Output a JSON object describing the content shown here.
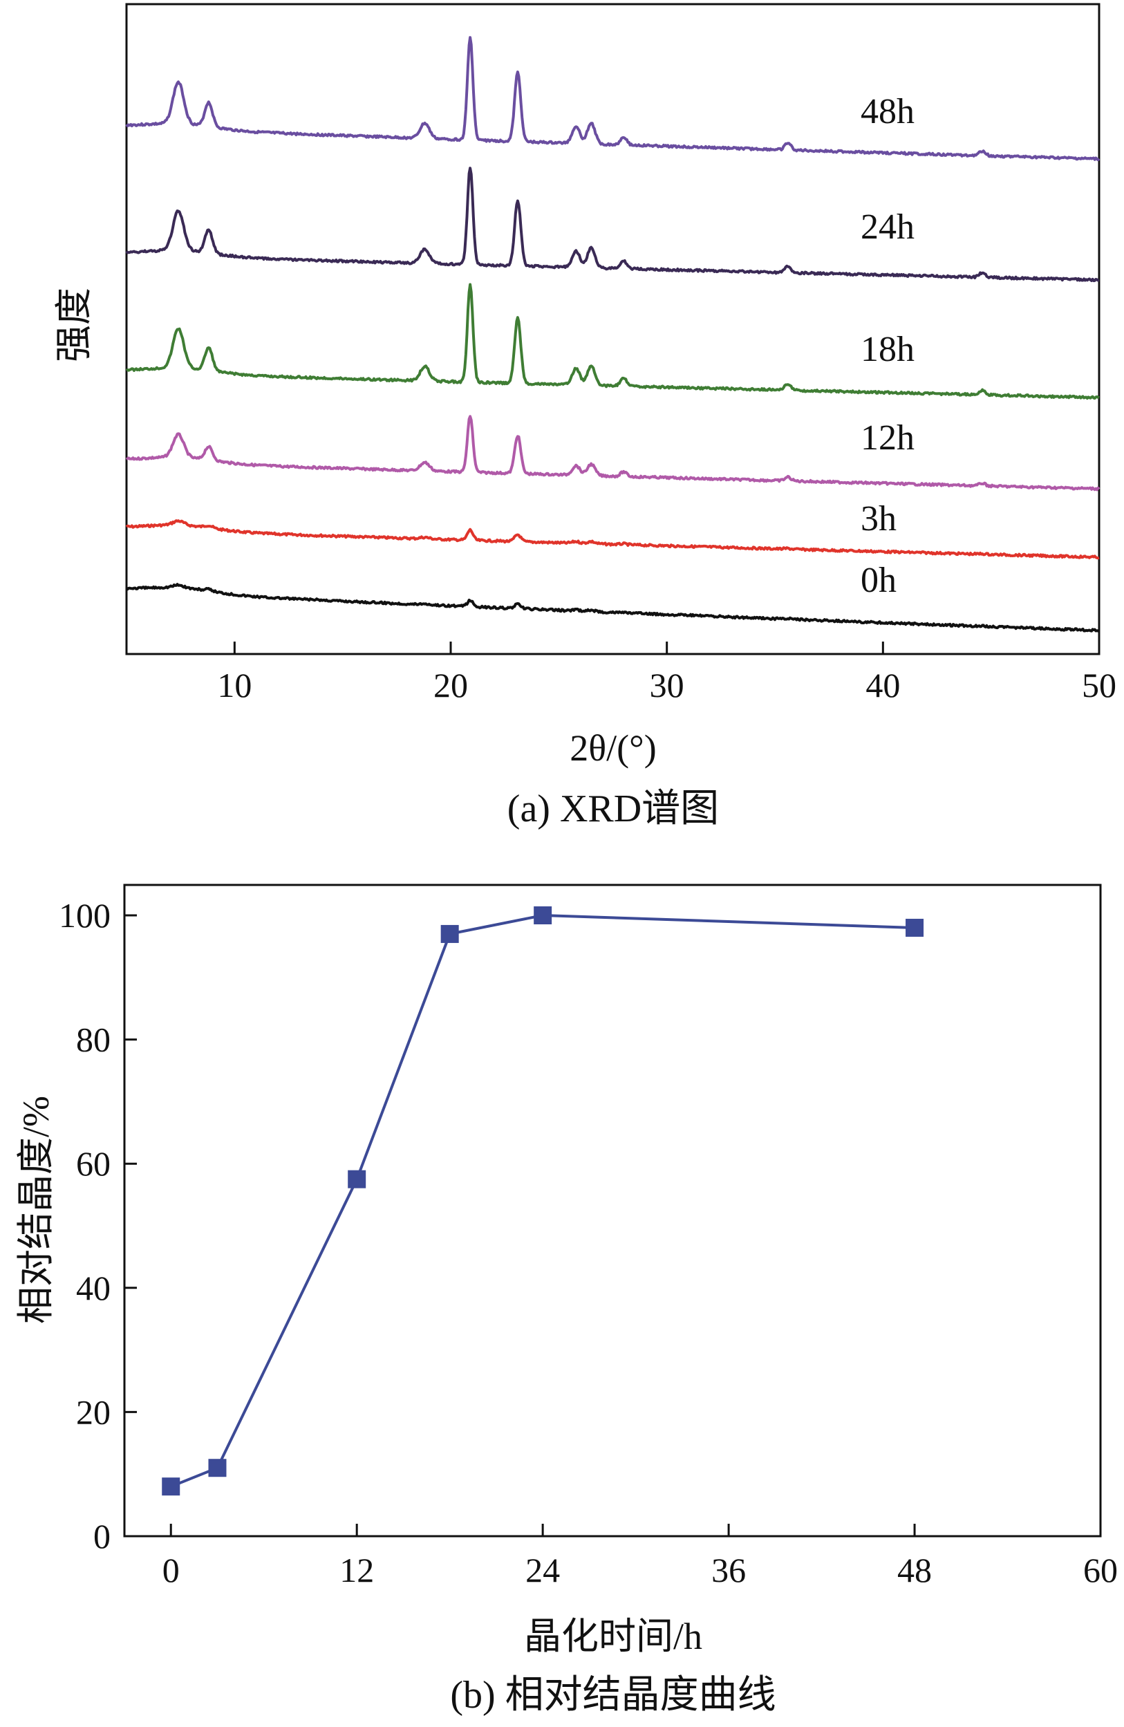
{
  "chart_data": [
    {
      "type": "line",
      "panel": "a",
      "caption": "(a) XRD谱图",
      "xlabel": "2θ/(°)",
      "ylabel": "强度",
      "xlim": [
        5,
        50
      ],
      "xticks": [
        10,
        20,
        30,
        40,
        50
      ],
      "yticks_shown": false,
      "grid": false,
      "peak_positions_2theta": [
        7.4,
        8.8,
        18.8,
        20.9,
        23.1,
        25.8,
        26.5,
        28.0,
        35.6,
        44.6
      ],
      "series": [
        {
          "name": "48h",
          "color": "#6a4ea0",
          "relative_intensity": 1.0
        },
        {
          "name": "24h",
          "color": "#3a2a55",
          "relative_intensity": 0.95
        },
        {
          "name": "18h",
          "color": "#3f7d34",
          "relative_intensity": 0.95
        },
        {
          "name": "12h",
          "color": "#b05aa8",
          "relative_intensity": 0.55
        },
        {
          "name": "3h",
          "color": "#e0342b",
          "relative_intensity": 0.1
        },
        {
          "name": "0h",
          "color": "#111111",
          "relative_intensity": 0.06
        }
      ]
    },
    {
      "type": "line",
      "panel": "b",
      "caption": "(b) 相对结晶度曲线",
      "xlabel": "晶化时间/h",
      "ylabel": "相对结晶度/%",
      "xlim": [
        -3,
        60
      ],
      "ylim": [
        0,
        100
      ],
      "xticks": [
        0,
        12,
        24,
        36,
        48,
        60
      ],
      "yticks": [
        0,
        20,
        40,
        60,
        80,
        100
      ],
      "grid": false,
      "color": "#3c4a96",
      "marker": "square",
      "x": [
        0,
        3,
        12,
        18,
        24,
        48
      ],
      "y": [
        8,
        11,
        57.5,
        97,
        100,
        98
      ]
    }
  ]
}
